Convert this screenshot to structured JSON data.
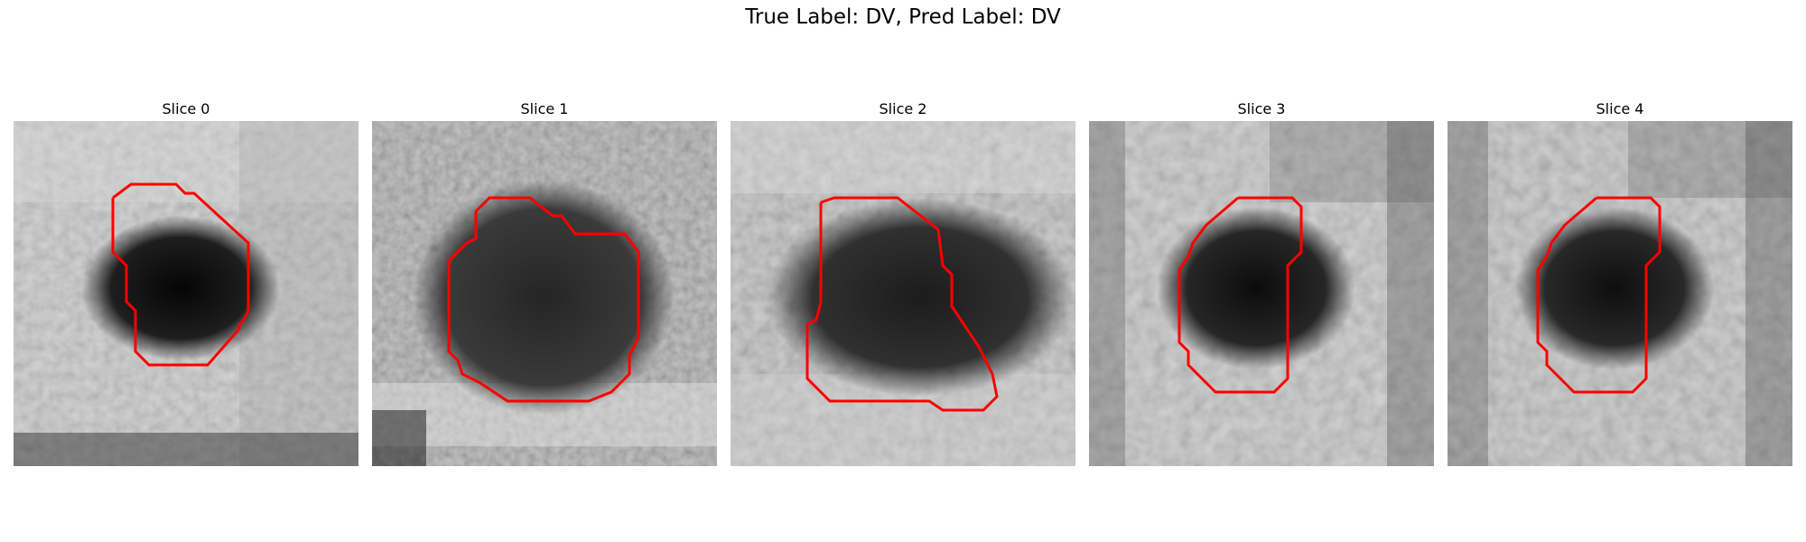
{
  "figure": {
    "title": "True Label: DV, Pred Label: DV",
    "contour_color": "#ff0000",
    "colormap": "grayscale"
  },
  "slices": [
    {
      "title": "Slice 0"
    },
    {
      "title": "Slice 1"
    },
    {
      "title": "Slice 2"
    },
    {
      "title": "Slice 3"
    },
    {
      "title": "Slice 4"
    }
  ]
}
